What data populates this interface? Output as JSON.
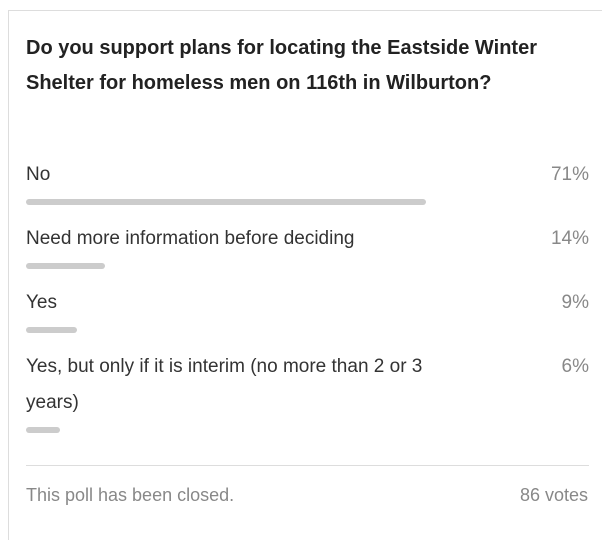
{
  "chart_data": {
    "type": "bar",
    "title": "Do you support plans for locating the Eastside Winter Shelter for homeless men on 116th in Wilburton?",
    "categories": [
      "No",
      "Need more information before deciding",
      "Yes",
      "Yes, but only if it is interim (no more than 2 or 3 years)"
    ],
    "values": [
      71,
      14,
      9,
      6
    ],
    "value_labels": [
      "71%",
      "14%",
      "9%",
      "6%"
    ],
    "xlim": [
      0,
      100
    ],
    "color": "#cccccc"
  },
  "footer": {
    "status": "This poll has been closed.",
    "votes": "86 votes"
  }
}
